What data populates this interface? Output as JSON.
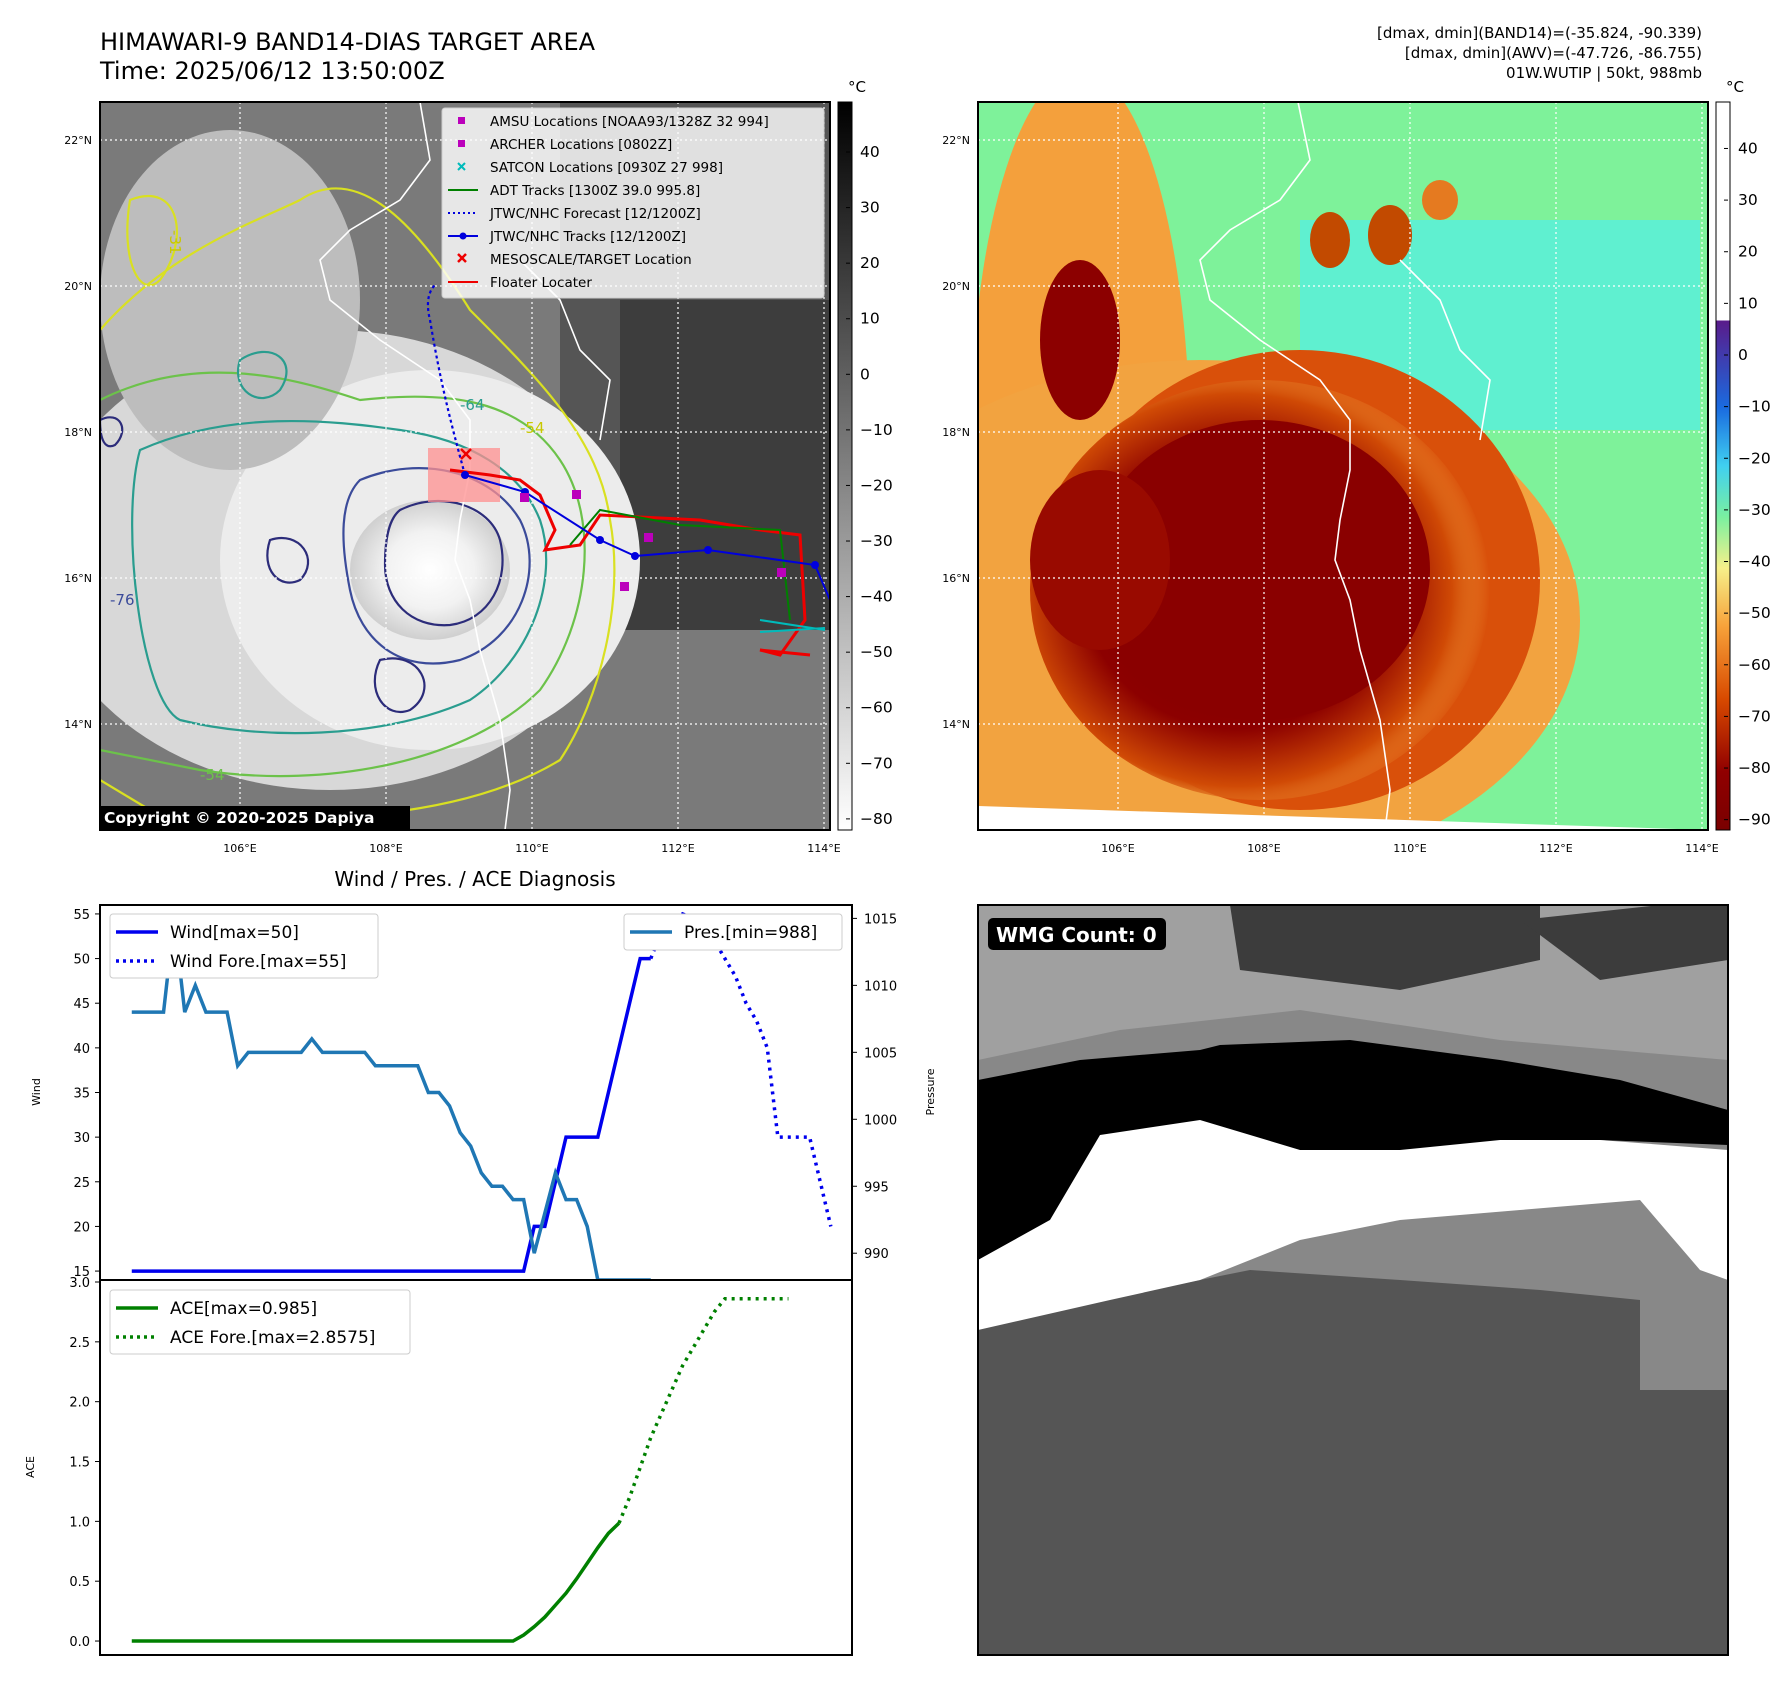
{
  "header": {
    "title_line1": "HIMAWARI-9 BAND14-DIAS TARGET AREA",
    "title_line2": "Time: 2025/06/12 13:50:00Z",
    "info_line1": "[dmax, dmin](BAND14)=(-35.824, -90.339)",
    "info_line2": "[dmax, dmin](AWV)=(-47.726, -86.755)",
    "info_line3": "01W.WUTIP | 50kt, 988mb"
  },
  "maps": {
    "lat_ticks": [
      "22°N",
      "20°N",
      "18°N",
      "16°N",
      "14°N"
    ],
    "lon_ticks": [
      "106°E",
      "108°E",
      "110°E",
      "112°E",
      "114°E"
    ],
    "copyright": "Copyright © 2020-2025 Dapiya",
    "contour_labels": [
      "-31",
      "-54",
      "-64",
      "-76"
    ],
    "colorbar_unit": "°C",
    "gray_colorbar_ticks": [
      "40",
      "30",
      "20",
      "10",
      "0",
      "−10",
      "−20",
      "−30",
      "−40",
      "−50",
      "−60",
      "−70",
      "−80"
    ],
    "color_colorbar_ticks": [
      "40",
      "30",
      "20",
      "10",
      "0",
      "−10",
      "−20",
      "−30",
      "−40",
      "−50",
      "−60",
      "−70",
      "−80",
      "−90"
    ],
    "legend": [
      {
        "label": "AMSU Locations [NOAA93/1328Z 32 994]",
        "color": "#bb00bb",
        "marker": "square"
      },
      {
        "label": "ARCHER Locations [0802Z]",
        "color": "#bb00bb",
        "marker": "square"
      },
      {
        "label": "SATCON Locations [0930Z 27 998]",
        "color": "#00bbbb",
        "marker": "x"
      },
      {
        "label": "ADT Tracks [1300Z 39.0 995.8]",
        "color": "#008000",
        "marker": "line"
      },
      {
        "label": "JTWC/NHC Forecast [12/1200Z]",
        "color": "#0000dd",
        "marker": "dotted"
      },
      {
        "label": "JTWC/NHC Tracks [12/1200Z]",
        "color": "#0000dd",
        "marker": "line-dot"
      },
      {
        "label": "MESOSCALE/TARGET Location",
        "color": "#ee0000",
        "marker": "x"
      },
      {
        "label": "Floater Locater",
        "color": "#ee0000",
        "marker": "line"
      }
    ]
  },
  "wmg": {
    "label": "WMG Count: 0"
  },
  "chart_data": [
    {
      "type": "line",
      "title": "Wind / Pres. / ACE Diagnosis",
      "ylabel": "Wind",
      "y2label": "Pressure",
      "ylim": [
        14,
        56
      ],
      "y2lim": [
        988,
        1016
      ],
      "yticks": [
        15,
        20,
        25,
        30,
        35,
        40,
        45,
        50,
        55
      ],
      "y2ticks": [
        990,
        995,
        1000,
        1005,
        1010,
        1015
      ],
      "series": [
        {
          "name": "Wind[max=50]",
          "axis": "left",
          "style": "solid",
          "color": "#0000ee",
          "x": [
            0,
            1,
            2,
            3,
            4,
            5,
            6,
            7,
            8,
            9,
            10,
            11,
            12,
            13,
            14,
            15,
            16,
            17,
            18,
            19,
            20,
            21,
            22,
            23,
            24,
            25,
            26,
            27,
            28,
            29,
            30,
            31,
            32,
            33,
            34,
            35,
            36,
            37,
            38,
            39,
            40,
            41,
            42,
            43,
            44,
            45,
            46,
            47,
            48,
            49
          ],
          "values": [
            15,
            15,
            15,
            15,
            15,
            15,
            15,
            15,
            15,
            15,
            15,
            15,
            15,
            15,
            15,
            15,
            15,
            15,
            15,
            15,
            15,
            15,
            15,
            15,
            15,
            15,
            15,
            15,
            15,
            15,
            15,
            15,
            15,
            15,
            15,
            15,
            15,
            15,
            20,
            20,
            25,
            30,
            30,
            30,
            30,
            35,
            40,
            45,
            50,
            50
          ]
        },
        {
          "name": "Wind Fore.[max=55]",
          "axis": "left",
          "style": "dotted",
          "color": "#0000ee",
          "x": [
            49,
            50,
            52,
            54,
            56,
            57,
            58,
            59,
            60,
            61,
            62,
            63,
            64,
            66
          ],
          "values": [
            50,
            53,
            55,
            54,
            50,
            48,
            45,
            43,
            40,
            30,
            30,
            30,
            30,
            20
          ]
        },
        {
          "name": "Pres.[min=988]",
          "axis": "right",
          "style": "solid",
          "color": "#1f77b4",
          "x": [
            0,
            1,
            2,
            3,
            4,
            5,
            6,
            7,
            8,
            9,
            10,
            11,
            12,
            13,
            14,
            15,
            16,
            17,
            18,
            19,
            20,
            21,
            22,
            23,
            24,
            25,
            26,
            27,
            28,
            29,
            30,
            31,
            32,
            33,
            34,
            35,
            36,
            37,
            38,
            39,
            40,
            41,
            42,
            43,
            44,
            45,
            46,
            47,
            48,
            49
          ],
          "values": [
            1008,
            1008,
            1008,
            1008,
            1015,
            1008,
            1010,
            1008,
            1008,
            1008,
            1004,
            1005,
            1005,
            1005,
            1005,
            1005,
            1005,
            1006,
            1005,
            1005,
            1005,
            1005,
            1005,
            1004,
            1004,
            1004,
            1004,
            1004,
            1002,
            1002,
            1001,
            999,
            998,
            996,
            995,
            995,
            994,
            994,
            990,
            993,
            996,
            994,
            994,
            992,
            988,
            988,
            988,
            988,
            988,
            988
          ]
        }
      ]
    },
    {
      "type": "line",
      "ylabel": "ACE",
      "ylim": [
        -0.1,
        3.0
      ],
      "yticks": [
        "0.0",
        "0.5",
        "1.0",
        "1.5",
        "2.0",
        "2.5",
        "3.0"
      ],
      "series": [
        {
          "name": "ACE[max=0.985]",
          "style": "solid",
          "color": "#008000",
          "x": [
            0,
            10,
            20,
            30,
            36,
            37,
            38,
            39,
            40,
            41,
            42,
            43,
            44,
            45,
            46
          ],
          "values": [
            0,
            0,
            0,
            0,
            0,
            0.05,
            0.12,
            0.2,
            0.3,
            0.4,
            0.52,
            0.65,
            0.78,
            0.9,
            0.985
          ]
        },
        {
          "name": "ACE Fore.[max=2.8575]",
          "style": "dotted",
          "color": "#008000",
          "x": [
            46,
            47,
            48,
            49,
            50,
            51,
            52,
            53,
            54,
            55,
            56,
            57,
            58,
            59,
            60,
            62
          ],
          "values": [
            0.985,
            1.2,
            1.45,
            1.7,
            1.9,
            2.1,
            2.3,
            2.45,
            2.6,
            2.75,
            2.86,
            2.86,
            2.86,
            2.86,
            2.86,
            2.86
          ]
        }
      ]
    }
  ]
}
